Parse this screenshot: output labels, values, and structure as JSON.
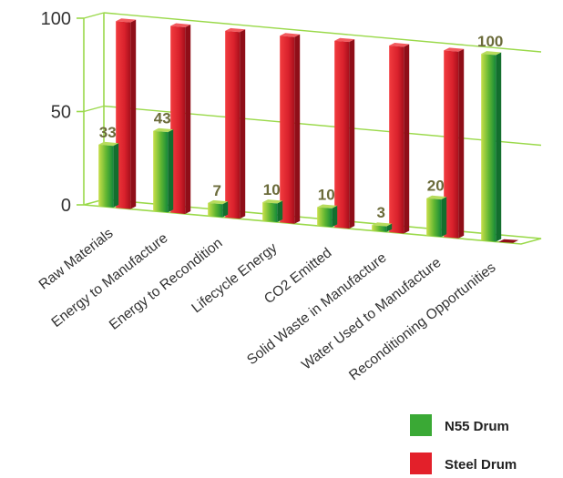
{
  "chart_data": {
    "type": "bar",
    "categories": [
      "Raw Materials",
      "Energy to Manufacture",
      "Energy to Recondition",
      "Lifecycle Energy",
      "CO2 Emitted",
      "Solid Waste in Manufacture",
      "Water Used to Manufacture",
      "Reconditioning Opportunities"
    ],
    "series": [
      {
        "name": "N55 Drum",
        "values": [
          33,
          43,
          7,
          10,
          10,
          3,
          20,
          100
        ],
        "labels": [
          "33",
          "43",
          "7",
          "10",
          "10",
          "3",
          "20",
          "100"
        ],
        "color": "#3aa935"
      },
      {
        "name": "Steel Drum",
        "values": [
          100,
          100,
          100,
          100,
          100,
          100,
          100,
          0
        ],
        "color": "#e3202a"
      }
    ],
    "yticks": [
      "0",
      "50",
      "100"
    ],
    "ylim": [
      0,
      100
    ],
    "grid": true,
    "legend_position": "bottom-right"
  }
}
